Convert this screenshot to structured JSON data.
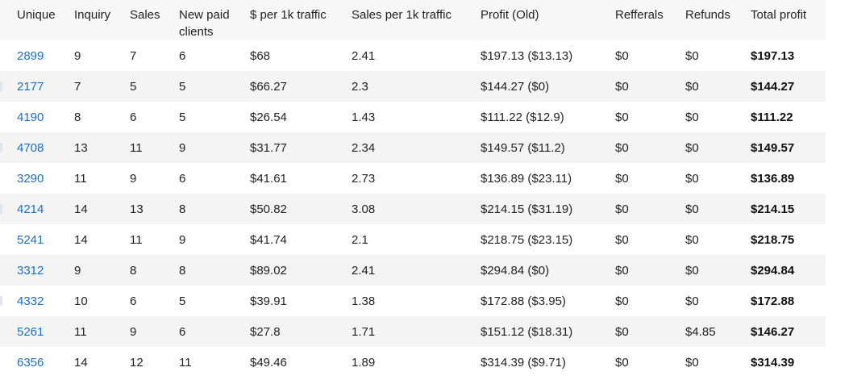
{
  "columns": [
    "Unique",
    "Inquiry",
    "Sales",
    "New paid clients",
    "$ per 1k traffic",
    "Sales per 1k traffic",
    "Profit (Old)",
    "Refferals",
    "Refunds",
    "Total profit"
  ],
  "rows": [
    {
      "unique": "2899",
      "inquiry": "9",
      "sales": "7",
      "new_paid": "6",
      "per_1k": "$68",
      "sales_per_1k": "2.41",
      "profit_old": "$197.13 ($13.13)",
      "referrals": "$0",
      "refunds": "$0",
      "total": "$197.13"
    },
    {
      "unique": "2177",
      "inquiry": "7",
      "sales": "5",
      "new_paid": "5",
      "per_1k": "$66.27",
      "sales_per_1k": "2.3",
      "profit_old": "$144.27 ($0)",
      "referrals": "$0",
      "refunds": "$0",
      "total": "$144.27"
    },
    {
      "unique": "4190",
      "inquiry": "8",
      "sales": "6",
      "new_paid": "5",
      "per_1k": "$26.54",
      "sales_per_1k": "1.43",
      "profit_old": "$111.22 ($12.9)",
      "referrals": "$0",
      "refunds": "$0",
      "total": "$111.22"
    },
    {
      "unique": "4708",
      "inquiry": "13",
      "sales": "11",
      "new_paid": "9",
      "per_1k": "$31.77",
      "sales_per_1k": "2.34",
      "profit_old": "$149.57 ($11.2)",
      "referrals": "$0",
      "refunds": "$0",
      "total": "$149.57"
    },
    {
      "unique": "3290",
      "inquiry": "11",
      "sales": "9",
      "new_paid": "6",
      "per_1k": "$41.61",
      "sales_per_1k": "2.73",
      "profit_old": "$136.89 ($23.11)",
      "referrals": "$0",
      "refunds": "$0",
      "total": "$136.89"
    },
    {
      "unique": "4214",
      "inquiry": "14",
      "sales": "13",
      "new_paid": "8",
      "per_1k": "$50.82",
      "sales_per_1k": "3.08",
      "profit_old": "$214.15 ($31.19)",
      "referrals": "$0",
      "refunds": "$0",
      "total": "$214.15"
    },
    {
      "unique": "5241",
      "inquiry": "14",
      "sales": "11",
      "new_paid": "9",
      "per_1k": "$41.74",
      "sales_per_1k": "2.1",
      "profit_old": "$218.75 ($23.15)",
      "referrals": "$0",
      "refunds": "$0",
      "total": "$218.75"
    },
    {
      "unique": "3312",
      "inquiry": "9",
      "sales": "8",
      "new_paid": "8",
      "per_1k": "$89.02",
      "sales_per_1k": "2.41",
      "profit_old": "$294.84 ($0)",
      "referrals": "$0",
      "refunds": "$0",
      "total": "$294.84"
    },
    {
      "unique": "4332",
      "inquiry": "10",
      "sales": "6",
      "new_paid": "5",
      "per_1k": "$39.91",
      "sales_per_1k": "1.38",
      "profit_old": "$172.88 ($3.95)",
      "referrals": "$0",
      "refunds": "$0",
      "total": "$172.88"
    },
    {
      "unique": "5261",
      "inquiry": "11",
      "sales": "9",
      "new_paid": "6",
      "per_1k": "$27.8",
      "sales_per_1k": "1.71",
      "profit_old": "$151.12 ($18.31)",
      "referrals": "$0",
      "refunds": "$4.85",
      "total": "$146.27"
    },
    {
      "unique": "6356",
      "inquiry": "14",
      "sales": "12",
      "new_paid": "11",
      "per_1k": "$49.46",
      "sales_per_1k": "1.89",
      "profit_old": "$314.39 ($9.71)",
      "referrals": "$0",
      "refunds": "$0",
      "total": "$314.39"
    }
  ],
  "colors": {
    "link": "#1b6ec2",
    "header_bg": "#f7f7f7",
    "stripe_bg": "#f4f4f4"
  }
}
